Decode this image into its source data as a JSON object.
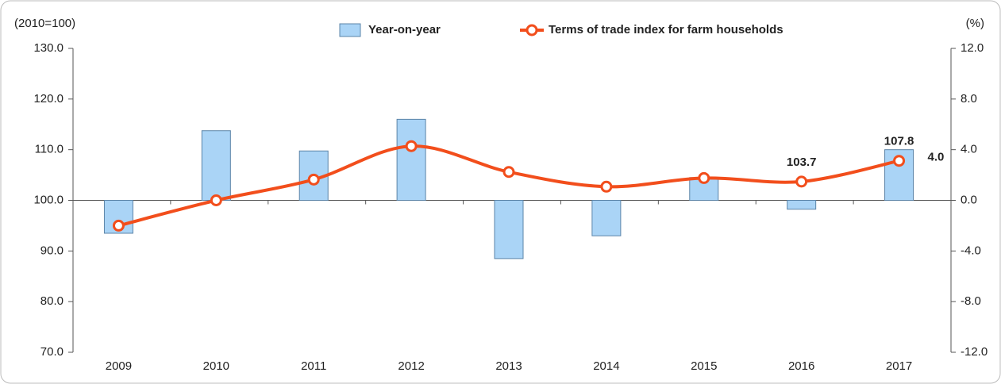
{
  "chart_data": {
    "type": "bar-line",
    "y_unit_label": "(2010=100)",
    "y2_unit_label": "(%)",
    "categories": [
      "2009",
      "2010",
      "2011",
      "2012",
      "2013",
      "2014",
      "2015",
      "2016",
      "2017"
    ],
    "series": [
      {
        "name": "Year-on-year",
        "type": "bar",
        "axis": "y2",
        "color": "#aad4f6",
        "edge_color": "#5b84a8",
        "values": [
          -2.6,
          5.5,
          3.9,
          6.4,
          -4.6,
          -2.8,
          1.8,
          -0.7,
          4.0
        ],
        "value_labels": [
          null,
          null,
          null,
          null,
          null,
          null,
          null,
          null,
          "4.0"
        ]
      },
      {
        "name": "Terms of trade index for farm households",
        "type": "line",
        "axis": "y",
        "color": "#f24e1c",
        "values": [
          95.0,
          100.0,
          104.1,
          110.7,
          105.6,
          102.7,
          104.4,
          103.7,
          107.8
        ],
        "value_labels": [
          null,
          null,
          null,
          null,
          null,
          null,
          null,
          "103.7",
          "107.8"
        ]
      }
    ],
    "ylim": [
      70,
      130
    ],
    "yticks": [
      {
        "value": 70,
        "label": "70.0"
      },
      {
        "value": 80,
        "label": "80.0"
      },
      {
        "value": 90,
        "label": "90.0"
      },
      {
        "value": 100,
        "label": "100.0"
      },
      {
        "value": 110,
        "label": "110.0"
      },
      {
        "value": 120,
        "label": "120.0"
      },
      {
        "value": 130,
        "label": "130.0"
      }
    ],
    "y2lim": [
      -12,
      12
    ],
    "y2ticks": [
      {
        "value": -12,
        "label": "-12.0"
      },
      {
        "value": -8,
        "label": "-8.0"
      },
      {
        "value": -4,
        "label": "-4.0"
      },
      {
        "value": 0,
        "label": "0.0"
      },
      {
        "value": 4,
        "label": "4.0"
      },
      {
        "value": 8,
        "label": "8.0"
      },
      {
        "value": 12,
        "label": "12.0"
      }
    ]
  }
}
